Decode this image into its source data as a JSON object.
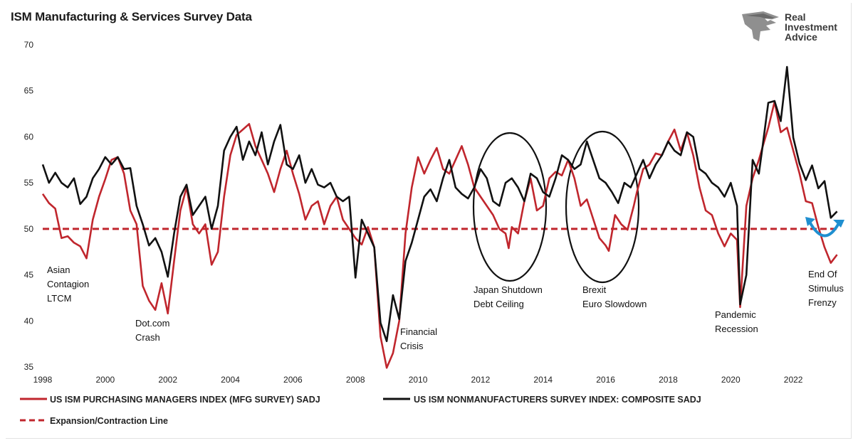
{
  "title": "ISM Manufacturing & Services Survey Data",
  "logo": {
    "lines": [
      "Real",
      "Investment",
      "Advice"
    ],
    "icon": "eagle-head-icon"
  },
  "colors": {
    "manufacturing": "#c0262d",
    "services": "#111111",
    "line50": "#c0262d",
    "arrow": "#1f8fd0"
  },
  "chart_data": {
    "type": "line",
    "x_range": [
      1998.0,
      2023.5
    ],
    "ylim": [
      35,
      70
    ],
    "y_ticks": [
      "35",
      "40",
      "45",
      "50",
      "55",
      "60",
      "65",
      "70"
    ],
    "x_ticks": [
      "1998",
      "2000",
      "2002",
      "2004",
      "2006",
      "2008",
      "2010",
      "2012",
      "2014",
      "2016",
      "2018",
      "2020",
      "2022"
    ],
    "grid": false,
    "legend_placement": "bottom",
    "series": [
      {
        "name": "US ISM PURCHASING MANAGERS INDEX (MFG SURVEY) SADJ",
        "points": [
          [
            1998.0,
            53.8
          ],
          [
            1998.2,
            52.8
          ],
          [
            1998.4,
            52.2
          ],
          [
            1998.6,
            49.0
          ],
          [
            1998.8,
            49.2
          ],
          [
            1999.0,
            48.5
          ],
          [
            1999.2,
            48.1
          ],
          [
            1999.4,
            46.8
          ],
          [
            1999.6,
            51.0
          ],
          [
            1999.8,
            53.5
          ],
          [
            2000.0,
            55.4
          ],
          [
            2000.2,
            57.5
          ],
          [
            2000.4,
            57.8
          ],
          [
            2000.6,
            56.0
          ],
          [
            2000.8,
            52.0
          ],
          [
            2001.0,
            50.5
          ],
          [
            2001.2,
            43.8
          ],
          [
            2001.4,
            42.2
          ],
          [
            2001.6,
            41.2
          ],
          [
            2001.8,
            44.1
          ],
          [
            2002.0,
            40.8
          ],
          [
            2002.2,
            46.5
          ],
          [
            2002.4,
            52.0
          ],
          [
            2002.6,
            54.5
          ],
          [
            2002.8,
            50.5
          ],
          [
            2003.0,
            49.5
          ],
          [
            2003.2,
            50.5
          ],
          [
            2003.4,
            46.1
          ],
          [
            2003.6,
            47.5
          ],
          [
            2003.8,
            53.5
          ],
          [
            2004.0,
            58.0
          ],
          [
            2004.2,
            60.2
          ],
          [
            2004.4,
            60.8
          ],
          [
            2004.6,
            61.4
          ],
          [
            2004.8,
            59.0
          ],
          [
            2005.0,
            57.5
          ],
          [
            2005.2,
            56.0
          ],
          [
            2005.4,
            54.0
          ],
          [
            2005.6,
            56.5
          ],
          [
            2005.8,
            58.5
          ],
          [
            2006.0,
            56.0
          ],
          [
            2006.2,
            53.8
          ],
          [
            2006.4,
            51.0
          ],
          [
            2006.6,
            52.5
          ],
          [
            2006.8,
            53.0
          ],
          [
            2007.0,
            50.5
          ],
          [
            2007.2,
            52.5
          ],
          [
            2007.4,
            53.5
          ],
          [
            2007.6,
            51.0
          ],
          [
            2007.8,
            50.0
          ],
          [
            2008.0,
            49.0
          ],
          [
            2008.2,
            48.3
          ],
          [
            2008.4,
            50.2
          ],
          [
            2008.6,
            48.0
          ],
          [
            2008.8,
            38.3
          ],
          [
            2009.0,
            34.9
          ],
          [
            2009.2,
            36.5
          ],
          [
            2009.4,
            40.0
          ],
          [
            2009.6,
            49.5
          ],
          [
            2009.8,
            54.5
          ],
          [
            2010.0,
            57.8
          ],
          [
            2010.2,
            56.0
          ],
          [
            2010.4,
            57.5
          ],
          [
            2010.6,
            58.8
          ],
          [
            2010.8,
            56.5
          ],
          [
            2011.0,
            56.0
          ],
          [
            2011.2,
            57.5
          ],
          [
            2011.4,
            59.0
          ],
          [
            2011.6,
            57.0
          ],
          [
            2011.8,
            54.5
          ],
          [
            2012.0,
            53.5
          ],
          [
            2012.2,
            52.5
          ],
          [
            2012.4,
            51.5
          ],
          [
            2012.6,
            50.0
          ],
          [
            2012.8,
            49.5
          ],
          [
            2012.9,
            47.9
          ],
          [
            2013.0,
            50.2
          ],
          [
            2013.2,
            49.5
          ],
          [
            2013.4,
            53.0
          ],
          [
            2013.6,
            55.5
          ],
          [
            2013.8,
            52.0
          ],
          [
            2014.0,
            52.5
          ],
          [
            2014.2,
            55.5
          ],
          [
            2014.4,
            56.2
          ],
          [
            2014.6,
            55.8
          ],
          [
            2014.8,
            57.5
          ],
          [
            2015.0,
            55.5
          ],
          [
            2015.2,
            52.5
          ],
          [
            2015.4,
            53.2
          ],
          [
            2015.6,
            51.1
          ],
          [
            2015.8,
            49.0
          ],
          [
            2016.0,
            48.2
          ],
          [
            2016.1,
            47.6
          ],
          [
            2016.3,
            51.5
          ],
          [
            2016.5,
            50.5
          ],
          [
            2016.7,
            49.9
          ],
          [
            2016.9,
            52.5
          ],
          [
            2017.0,
            54.0
          ],
          [
            2017.2,
            56.5
          ],
          [
            2017.4,
            57.0
          ],
          [
            2017.6,
            58.2
          ],
          [
            2017.8,
            58.0
          ],
          [
            2018.0,
            59.5
          ],
          [
            2018.2,
            60.8
          ],
          [
            2018.4,
            58.5
          ],
          [
            2018.6,
            60.5
          ],
          [
            2018.8,
            58.0
          ],
          [
            2019.0,
            54.5
          ],
          [
            2019.2,
            52.0
          ],
          [
            2019.4,
            51.5
          ],
          [
            2019.6,
            49.5
          ],
          [
            2019.8,
            48.1
          ],
          [
            2020.0,
            49.5
          ],
          [
            2020.2,
            48.8
          ],
          [
            2020.3,
            41.5
          ],
          [
            2020.5,
            52.5
          ],
          [
            2020.7,
            55.5
          ],
          [
            2020.9,
            57.5
          ],
          [
            2021.0,
            58.7
          ],
          [
            2021.2,
            61.0
          ],
          [
            2021.4,
            63.8
          ],
          [
            2021.6,
            60.5
          ],
          [
            2021.8,
            61.0
          ],
          [
            2022.0,
            58.5
          ],
          [
            2022.2,
            56.0
          ],
          [
            2022.4,
            53.0
          ],
          [
            2022.6,
            52.8
          ],
          [
            2022.8,
            50.2
          ],
          [
            2023.0,
            48.0
          ],
          [
            2023.2,
            46.3
          ],
          [
            2023.4,
            47.2
          ]
        ]
      },
      {
        "name": "US ISM NONMANUFACTURERS SURVEY INDEX: COMPOSITE SADJ",
        "points": [
          [
            1998.0,
            57.0
          ],
          [
            1998.2,
            55.0
          ],
          [
            1998.4,
            56.1
          ],
          [
            1998.6,
            55.0
          ],
          [
            1998.8,
            54.5
          ],
          [
            1999.0,
            55.5
          ],
          [
            1999.2,
            52.7
          ],
          [
            1999.4,
            53.5
          ],
          [
            1999.6,
            55.5
          ],
          [
            1999.8,
            56.5
          ],
          [
            2000.0,
            57.8
          ],
          [
            2000.2,
            57.0
          ],
          [
            2000.4,
            57.8
          ],
          [
            2000.6,
            56.5
          ],
          [
            2000.8,
            56.6
          ],
          [
            2001.0,
            52.5
          ],
          [
            2001.2,
            50.5
          ],
          [
            2001.4,
            48.2
          ],
          [
            2001.6,
            49.0
          ],
          [
            2001.8,
            47.5
          ],
          [
            2002.0,
            44.8
          ],
          [
            2002.2,
            49.5
          ],
          [
            2002.4,
            53.5
          ],
          [
            2002.6,
            54.8
          ],
          [
            2002.8,
            51.5
          ],
          [
            2003.0,
            52.5
          ],
          [
            2003.2,
            53.5
          ],
          [
            2003.4,
            50.0
          ],
          [
            2003.6,
            52.5
          ],
          [
            2003.8,
            58.5
          ],
          [
            2004.0,
            60.0
          ],
          [
            2004.2,
            61.1
          ],
          [
            2004.4,
            57.5
          ],
          [
            2004.6,
            59.5
          ],
          [
            2004.8,
            58.0
          ],
          [
            2005.0,
            60.5
          ],
          [
            2005.2,
            57.0
          ],
          [
            2005.4,
            59.5
          ],
          [
            2005.6,
            61.3
          ],
          [
            2005.8,
            57.0
          ],
          [
            2006.0,
            56.5
          ],
          [
            2006.2,
            58.0
          ],
          [
            2006.4,
            55.0
          ],
          [
            2006.6,
            56.5
          ],
          [
            2006.8,
            54.8
          ],
          [
            2007.0,
            54.5
          ],
          [
            2007.2,
            55.0
          ],
          [
            2007.4,
            53.5
          ],
          [
            2007.6,
            53.0
          ],
          [
            2007.8,
            53.5
          ],
          [
            2008.0,
            44.7
          ],
          [
            2008.2,
            51.0
          ],
          [
            2008.4,
            49.5
          ],
          [
            2008.6,
            48.0
          ],
          [
            2008.8,
            39.8
          ],
          [
            2009.0,
            37.8
          ],
          [
            2009.2,
            42.8
          ],
          [
            2009.4,
            40.2
          ],
          [
            2009.6,
            46.5
          ],
          [
            2009.8,
            48.5
          ],
          [
            2010.0,
            51.0
          ],
          [
            2010.2,
            53.5
          ],
          [
            2010.4,
            54.3
          ],
          [
            2010.6,
            53.0
          ],
          [
            2010.8,
            55.5
          ],
          [
            2011.0,
            57.5
          ],
          [
            2011.2,
            54.5
          ],
          [
            2011.4,
            53.8
          ],
          [
            2011.6,
            53.3
          ],
          [
            2011.8,
            54.5
          ],
          [
            2012.0,
            56.5
          ],
          [
            2012.2,
            55.5
          ],
          [
            2012.4,
            53.0
          ],
          [
            2012.6,
            52.5
          ],
          [
            2012.8,
            55.0
          ],
          [
            2013.0,
            55.5
          ],
          [
            2013.2,
            54.5
          ],
          [
            2013.4,
            53.0
          ],
          [
            2013.6,
            56.0
          ],
          [
            2013.8,
            55.5
          ],
          [
            2014.0,
            54.0
          ],
          [
            2014.2,
            53.5
          ],
          [
            2014.4,
            55.5
          ],
          [
            2014.6,
            58.0
          ],
          [
            2014.8,
            57.5
          ],
          [
            2015.0,
            56.5
          ],
          [
            2015.2,
            57.0
          ],
          [
            2015.4,
            59.5
          ],
          [
            2015.6,
            57.5
          ],
          [
            2015.8,
            55.5
          ],
          [
            2016.0,
            55.0
          ],
          [
            2016.2,
            54.0
          ],
          [
            2016.4,
            52.8
          ],
          [
            2016.6,
            55.0
          ],
          [
            2016.8,
            54.5
          ],
          [
            2017.0,
            56.0
          ],
          [
            2017.2,
            57.5
          ],
          [
            2017.4,
            55.5
          ],
          [
            2017.6,
            57.0
          ],
          [
            2017.8,
            58.0
          ],
          [
            2018.0,
            59.5
          ],
          [
            2018.2,
            58.5
          ],
          [
            2018.4,
            58.0
          ],
          [
            2018.6,
            60.5
          ],
          [
            2018.8,
            60.0
          ],
          [
            2019.0,
            56.5
          ],
          [
            2019.2,
            56.0
          ],
          [
            2019.4,
            55.0
          ],
          [
            2019.6,
            54.5
          ],
          [
            2019.8,
            53.5
          ],
          [
            2020.0,
            55.0
          ],
          [
            2020.2,
            52.5
          ],
          [
            2020.3,
            41.8
          ],
          [
            2020.5,
            45.0
          ],
          [
            2020.7,
            57.5
          ],
          [
            2020.9,
            56.0
          ],
          [
            2021.0,
            58.5
          ],
          [
            2021.2,
            63.7
          ],
          [
            2021.4,
            63.9
          ],
          [
            2021.6,
            61.7
          ],
          [
            2021.8,
            67.6
          ],
          [
            2022.0,
            59.9
          ],
          [
            2022.2,
            57.1
          ],
          [
            2022.4,
            55.3
          ],
          [
            2022.6,
            56.9
          ],
          [
            2022.8,
            54.4
          ],
          [
            2023.0,
            55.2
          ],
          [
            2023.2,
            51.2
          ],
          [
            2023.4,
            51.9
          ]
        ]
      }
    ],
    "reference_line": {
      "name": "Expansion/Contraction Line",
      "y": 50
    },
    "annotations": [
      {
        "lines": [
          "Asian",
          "Contagion",
          "LTCM"
        ]
      },
      {
        "lines": [
          "Dot.com",
          "Crash"
        ]
      },
      {
        "lines": [
          "Financial",
          "Crisis"
        ]
      },
      {
        "lines": [
          "Japan Shutdown",
          "Debt Ceiling"
        ]
      },
      {
        "lines": [
          "Brexit",
          "Euro Slowdown"
        ]
      },
      {
        "lines": [
          "Pandemic",
          "Recession"
        ]
      },
      {
        "lines": [
          "End Of",
          "Stimulus",
          "Frenzy"
        ]
      }
    ]
  }
}
